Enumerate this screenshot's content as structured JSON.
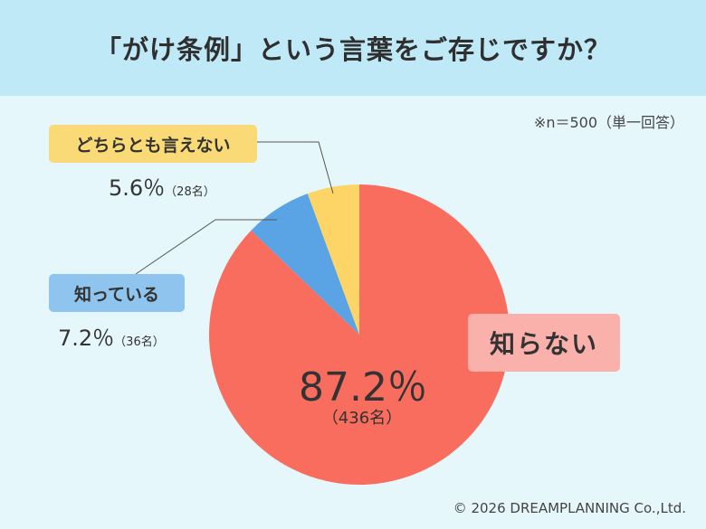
{
  "header": {
    "title": "「がけ条例」という言葉をご存じですか？"
  },
  "note": "※n＝500（単一回答）",
  "copyright": "© 2026 DREAMPLANNING Co.,Ltd.",
  "chart_data": {
    "type": "pie",
    "title": "「がけ条例」という言葉をご存じですか？",
    "n": 500,
    "slices": [
      {
        "label": "知らない",
        "percent": 87.2,
        "count": 436,
        "color": "#f96d5e",
        "percent_text": "87.2％",
        "count_text": "（436名）"
      },
      {
        "label": "知っている",
        "percent": 7.2,
        "count": 36,
        "color": "#5aa3e5",
        "percent_text": "7.2％",
        "count_text": "（36名）"
      },
      {
        "label": "どちらとも言えない",
        "percent": 5.6,
        "count": 28,
        "color": "#fdd567",
        "percent_text": "5.6％",
        "count_text": "（28名）"
      }
    ]
  }
}
